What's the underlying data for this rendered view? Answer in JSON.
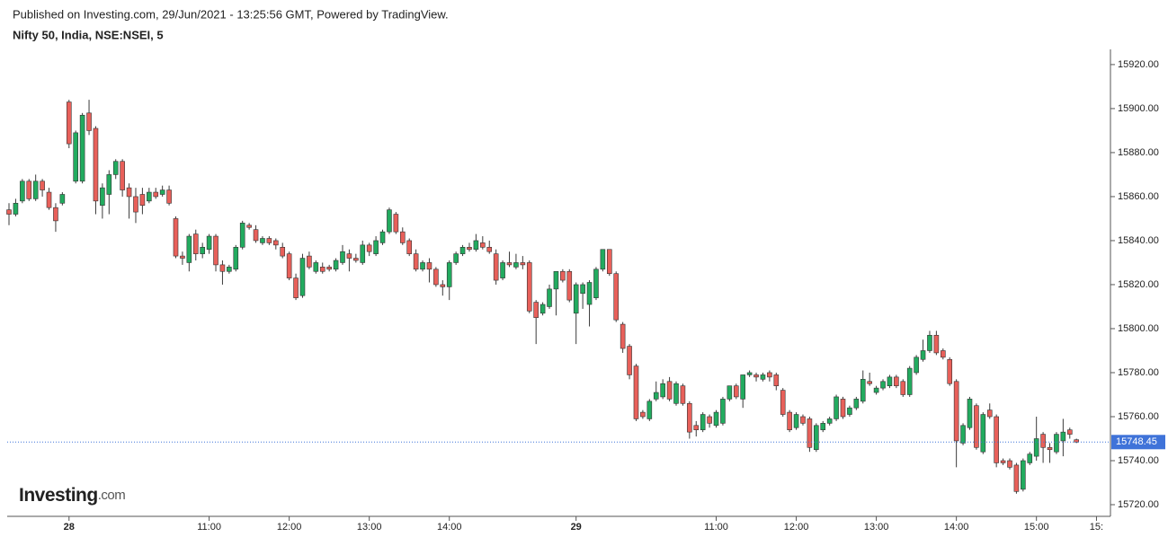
{
  "chart_data": {
    "type": "candlestick",
    "published": "Published on Investing.com, 29/Jun/2021 - 13:25:56 GMT, Powered by TradingView.",
    "title": "Nifty 50, India, NSE:NSEI, 5",
    "logo": "Investing",
    "logo_suffix": ".com",
    "up_color": "#22ab5f",
    "down_color": "#e8605a",
    "wick_color": "#3a3a3a",
    "last_price_color": "#3f73d9",
    "last_price": 15748.45,
    "last_price_label": "15748.45",
    "ylim": [
      15714.7,
      15926.9
    ],
    "yticks": [
      {
        "value": 15720,
        "label": "15720.00"
      },
      {
        "value": 15740,
        "label": "15740.00"
      },
      {
        "value": 15760,
        "label": "15760.00"
      },
      {
        "value": 15780,
        "label": "15780.00"
      },
      {
        "value": 15800,
        "label": "15800.00"
      },
      {
        "value": 15820,
        "label": "15820.00"
      },
      {
        "value": 15840,
        "label": "15840.00"
      },
      {
        "value": 15860,
        "label": "15860.00"
      },
      {
        "value": 15880,
        "label": "15880.00"
      },
      {
        "value": 15900,
        "label": "15900.00"
      },
      {
        "value": 15920,
        "label": "15920.00"
      }
    ],
    "categories": [
      null,
      null,
      null,
      null,
      null,
      null,
      null,
      null,
      null,
      "28",
      null,
      null,
      null,
      null,
      null,
      null,
      null,
      null,
      null,
      null,
      null,
      null,
      null,
      null,
      null,
      null,
      null,
      null,
      null,
      null,
      "11:00",
      null,
      null,
      null,
      null,
      null,
      null,
      null,
      null,
      null,
      null,
      null,
      "12:00",
      null,
      null,
      null,
      null,
      null,
      null,
      null,
      null,
      null,
      null,
      null,
      "13:00",
      null,
      null,
      null,
      null,
      null,
      null,
      null,
      null,
      null,
      null,
      null,
      "14:00",
      null,
      null,
      null,
      null,
      null,
      null,
      null,
      null,
      null,
      null,
      null,
      null,
      null,
      null,
      null,
      null,
      null,
      null,
      "29",
      null,
      null,
      null,
      null,
      null,
      null,
      null,
      null,
      null,
      null,
      null,
      null,
      null,
      null,
      null,
      null,
      null,
      null,
      null,
      null,
      "11:00",
      null,
      null,
      null,
      null,
      null,
      null,
      null,
      null,
      null,
      null,
      null,
      "12:00",
      null,
      null,
      null,
      null,
      null,
      null,
      null,
      null,
      null,
      null,
      null,
      "13:00",
      null,
      null,
      null,
      null,
      null,
      null,
      null,
      null,
      null,
      null,
      null,
      "14:00",
      null,
      null,
      null,
      null,
      null,
      null,
      null,
      null,
      null,
      null,
      null,
      "15:00",
      null,
      null,
      null,
      null,
      null,
      null,
      null,
      null,
      "15:"
    ],
    "ohlc": [
      [
        15854,
        15857,
        15847,
        15852
      ],
      [
        15852,
        15859,
        15851,
        15857
      ],
      [
        15858,
        15868,
        15857,
        15867
      ],
      [
        15867,
        15868,
        15858,
        15859
      ],
      [
        15859,
        15870,
        15858,
        15867
      ],
      [
        15867,
        15868,
        15860,
        15863
      ],
      [
        15862,
        15864,
        15854,
        15855
      ],
      [
        15855,
        15857,
        15844,
        15849
      ],
      [
        15857,
        15862,
        15856,
        15861
      ],
      [
        15903,
        15904,
        15882,
        15884
      ],
      [
        15867,
        15890,
        15866,
        15889
      ],
      [
        15867,
        15898,
        15866,
        15897
      ],
      [
        15898,
        15904,
        15888,
        15890
      ],
      [
        15891,
        15892,
        15852,
        15858
      ],
      [
        15856,
        15866,
        15850,
        15864
      ],
      [
        15861,
        15872,
        15852,
        15870
      ],
      [
        15870,
        15877,
        15868,
        15876
      ],
      [
        15876,
        15877,
        15860,
        15863
      ],
      [
        15864,
        15866,
        15850,
        15860
      ],
      [
        15860,
        15864,
        15848,
        15853
      ],
      [
        15861,
        15864,
        15852,
        15856
      ],
      [
        15858,
        15864,
        15857,
        15862
      ],
      [
        15862,
        15864,
        15859,
        15860
      ],
      [
        15861,
        15865,
        15860,
        15863
      ],
      [
        15863,
        15865,
        15856,
        15857
      ],
      [
        15850,
        15851,
        15832,
        15833
      ],
      [
        15833,
        15835,
        15829,
        15832
      ],
      [
        15830,
        15843,
        15826,
        15842
      ],
      [
        15843,
        15845,
        15831,
        15834
      ],
      [
        15834,
        15839,
        15832,
        15837
      ],
      [
        15836,
        15843,
        15834,
        15842
      ],
      [
        15842,
        15843,
        15826,
        15829
      ],
      [
        15829,
        15831,
        15820,
        15826
      ],
      [
        15826,
        15829,
        15825,
        15828
      ],
      [
        15827,
        15838,
        15826,
        15837
      ],
      [
        15837,
        15849,
        15836,
        15848
      ],
      [
        15847,
        15848,
        15845,
        15846
      ],
      [
        15845,
        15847,
        15839,
        15840
      ],
      [
        15839,
        15842,
        15838,
        15841
      ],
      [
        15841,
        15842,
        15838,
        15839
      ],
      [
        15840,
        15841,
        15836,
        15838
      ],
      [
        15837,
        15839,
        15832,
        15833
      ],
      [
        15834,
        15835,
        15822,
        15823
      ],
      [
        15823,
        15825,
        15813,
        15814
      ],
      [
        15815,
        15834,
        15814,
        15832
      ],
      [
        15833,
        15835,
        15827,
        15828
      ],
      [
        15826,
        15831,
        15825,
        15830
      ],
      [
        15828,
        15830,
        15825,
        15826
      ],
      [
        15828,
        15829,
        15826,
        15827
      ],
      [
        15827,
        15832,
        15826,
        15831
      ],
      [
        15830,
        15838,
        15829,
        15835
      ],
      [
        15834,
        15836,
        15826,
        15832
      ],
      [
        15832,
        15834,
        15830,
        15831
      ],
      [
        15830,
        15840,
        15829,
        15838
      ],
      [
        15838,
        15839,
        15833,
        15835
      ],
      [
        15834,
        15842,
        15833,
        15840
      ],
      [
        15839,
        15845,
        15838,
        15844
      ],
      [
        15844,
        15855,
        15843,
        15854
      ],
      [
        15852,
        15853,
        15843,
        15844
      ],
      [
        15844,
        15846,
        15838,
        15839
      ],
      [
        15840,
        15841,
        15833,
        15834
      ],
      [
        15834,
        15836,
        15826,
        15827
      ],
      [
        15827,
        15831,
        15826,
        15830
      ],
      [
        15830,
        15832,
        15821,
        15827
      ],
      [
        15827,
        15828,
        15819,
        15820
      ],
      [
        15820,
        15822,
        15815,
        15819
      ],
      [
        15819,
        15831,
        15813,
        15830
      ],
      [
        15830,
        15835,
        15829,
        15834
      ],
      [
        15834,
        15838,
        15833,
        15837
      ],
      [
        15837,
        15839,
        15835,
        15836
      ],
      [
        15836,
        15843,
        15835,
        15840
      ],
      [
        15839,
        15842,
        15836,
        15837
      ],
      [
        15837,
        15840,
        15834,
        15835
      ],
      [
        15834,
        15836,
        15820,
        15822
      ],
      [
        15823,
        15831,
        15822,
        15830
      ],
      [
        15830,
        15835,
        15828,
        15829
      ],
      [
        15828,
        15834,
        15827,
        15830
      ],
      [
        15830,
        15833,
        15827,
        15829
      ],
      [
        15830,
        15831,
        15807,
        15808
      ],
      [
        15812,
        15813,
        15793,
        15805
      ],
      [
        15807,
        15812,
        15806,
        15811
      ],
      [
        15810,
        15820,
        15809,
        15818
      ],
      [
        15818,
        15826,
        15806,
        15826
      ],
      [
        15826,
        15827,
        15821,
        15822
      ],
      [
        15826,
        15827,
        15812,
        15813
      ],
      [
        15807,
        15821,
        15793,
        15820
      ],
      [
        15816,
        15821,
        15809,
        15820
      ],
      [
        15811,
        15822,
        15801,
        15821
      ],
      [
        15814,
        15828,
        15813,
        15827
      ],
      [
        15827,
        15836,
        15826,
        15836
      ],
      [
        15836,
        15836,
        15824,
        15825
      ],
      [
        15825,
        15826,
        15803,
        15804
      ],
      [
        15802,
        15803,
        15789,
        15791
      ],
      [
        15792,
        15793,
        15777,
        15779
      ],
      [
        15783,
        15784,
        15758,
        15759
      ],
      [
        15762,
        15763,
        15759,
        15760
      ],
      [
        15759,
        15768,
        15758,
        15767
      ],
      [
        15768,
        15776,
        15767,
        15771
      ],
      [
        15769,
        15777,
        15768,
        15775
      ],
      [
        15776,
        15778,
        15767,
        15768
      ],
      [
        15766,
        15776,
        15765,
        15775
      ],
      [
        15774,
        15775,
        15765,
        15766
      ],
      [
        15766,
        15767,
        15750,
        15753
      ],
      [
        15756,
        15758,
        15751,
        15754
      ],
      [
        15754,
        15762,
        15753,
        15761
      ],
      [
        15760,
        15761,
        15755,
        15757
      ],
      [
        15756,
        15763,
        15755,
        15762
      ],
      [
        15757,
        15769,
        15756,
        15768
      ],
      [
        15768,
        15774,
        15767,
        15774
      ],
      [
        15774,
        15775,
        15768,
        15769
      ],
      [
        15768,
        15779,
        15764,
        15779
      ],
      [
        15779,
        15781,
        15778,
        15780
      ],
      [
        15779,
        15780,
        15776,
        15778
      ],
      [
        15777,
        15780,
        15776,
        15779
      ],
      [
        15780,
        15781,
        15776,
        15778
      ],
      [
        15779,
        15780,
        15772,
        15774
      ],
      [
        15772,
        15773,
        15760,
        15761
      ],
      [
        15762,
        15763,
        15753,
        15754
      ],
      [
        15755,
        15762,
        15754,
        15761
      ],
      [
        15760,
        15761,
        15756,
        15757
      ],
      [
        15759,
        15760,
        15744,
        15746
      ],
      [
        15745,
        15757,
        15744,
        15756
      ],
      [
        15754,
        15758,
        15753,
        15757
      ],
      [
        15757,
        15760,
        15756,
        15759
      ],
      [
        15759,
        15770,
        15758,
        15769
      ],
      [
        15768,
        15769,
        15759,
        15760
      ],
      [
        15761,
        15765,
        15760,
        15764
      ],
      [
        15764,
        15769,
        15763,
        15768
      ],
      [
        15767,
        15781,
        15766,
        15777
      ],
      [
        15776,
        15780,
        15774,
        15775
      ],
      [
        15771,
        15774,
        15770,
        15773
      ],
      [
        15773,
        15777,
        15772,
        15776
      ],
      [
        15774,
        15779,
        15773,
        15778
      ],
      [
        15778,
        15779,
        15773,
        15774
      ],
      [
        15776,
        15777,
        15769,
        15770
      ],
      [
        15770,
        15783,
        15769,
        15782
      ],
      [
        15780,
        15788,
        15779,
        15787
      ],
      [
        15786,
        15795,
        15785,
        15790
      ],
      [
        15790,
        15799,
        15789,
        15797
      ],
      [
        15797,
        15799,
        15788,
        15789
      ],
      [
        15790,
        15791,
        15786,
        15787
      ],
      [
        15786,
        15787,
        15774,
        15775
      ],
      [
        15776,
        15777,
        15737,
        15749
      ],
      [
        15748,
        15757,
        15747,
        15756
      ],
      [
        15755,
        15769,
        15754,
        15768
      ],
      [
        15765,
        15766,
        15745,
        15746
      ],
      [
        15744,
        15762,
        15743,
        15761
      ],
      [
        15763,
        15766,
        15759,
        15760
      ],
      [
        15760,
        15761,
        15737,
        15739
      ],
      [
        15740,
        15741,
        15738,
        15739
      ],
      [
        15740,
        15741,
        15736,
        15737
      ],
      [
        15738,
        15739,
        15725,
        15726
      ],
      [
        15727,
        15741,
        15726,
        15740
      ],
      [
        15739,
        15744,
        15738,
        15743
      ],
      [
        15742,
        15760,
        15740,
        15750
      ],
      [
        15752,
        15753,
        15739,
        15746
      ],
      [
        15746,
        15748,
        15739,
        15745
      ],
      [
        15744,
        15753,
        15743,
        15752
      ],
      [
        15749,
        15759,
        15742,
        15753
      ],
      [
        15754,
        15755,
        15750,
        15752
      ],
      [
        15749.5,
        15750,
        15748,
        15748.45
      ],
      null,
      null,
      null
    ]
  }
}
